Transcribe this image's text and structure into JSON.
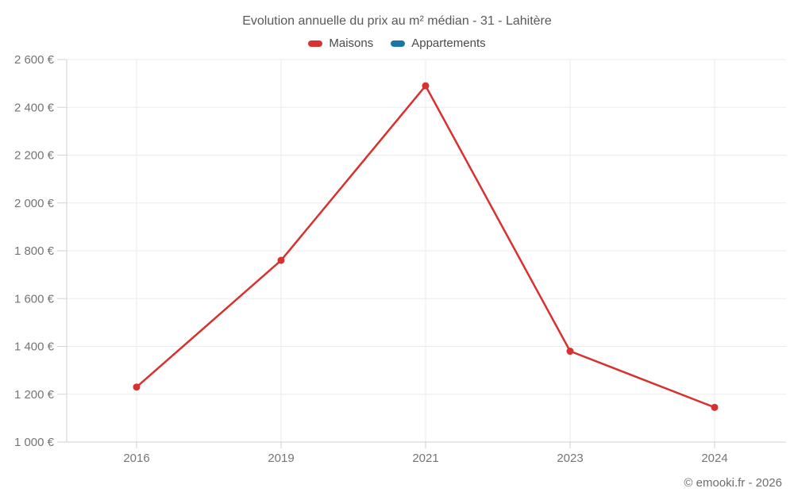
{
  "title": "Evolution annuelle du prix au m² médian - 31 - Lahitère",
  "legend": {
    "items": [
      {
        "label": "Maisons",
        "color": "#d93030"
      },
      {
        "label": "Appartements",
        "color": "#1777a8"
      }
    ]
  },
  "footer": {
    "copyright": "© emooki.fr - 2026"
  },
  "colors": {
    "grid": "#ebebeb",
    "axis": "#d2d2d2",
    "tick_label": "#757575"
  },
  "chart_data": {
    "type": "line",
    "title": "Evolution annuelle du prix au m² médian - 31 - Lahitère",
    "categories": [
      "2016",
      "2019",
      "2021",
      "2023",
      "2024"
    ],
    "series": [
      {
        "name": "Maisons",
        "color": "#d93030",
        "values": [
          1230,
          1760,
          2490,
          1380,
          1145
        ]
      },
      {
        "name": "Appartements",
        "color": "#1777a8",
        "values": []
      }
    ],
    "xlabel": "",
    "ylabel": "",
    "ylim": [
      1000,
      2600
    ],
    "ytick_step": 200,
    "ytick_format": "{value} €",
    "grid": true,
    "legend_position": "top"
  }
}
